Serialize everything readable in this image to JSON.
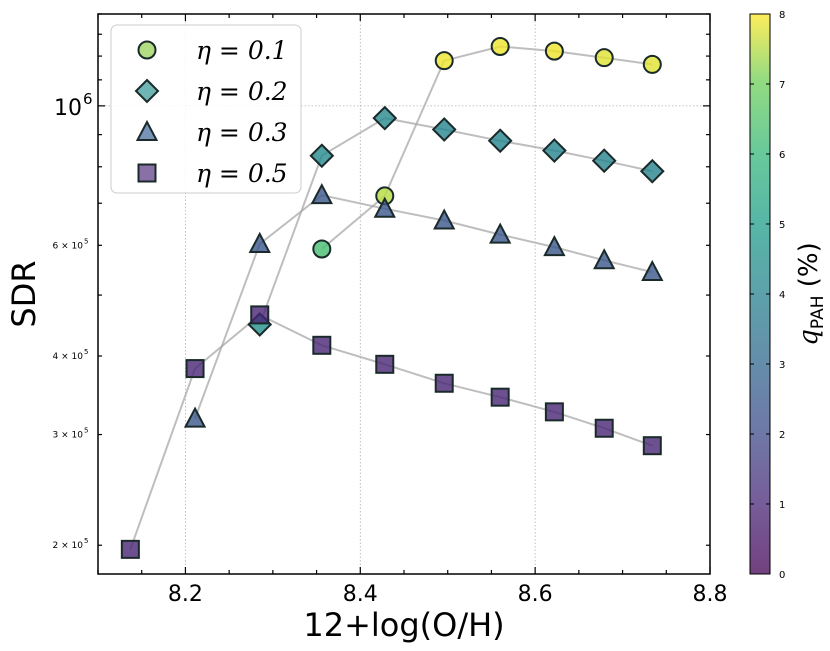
{
  "chart_data": {
    "type": "scatter",
    "xlabel": "12+log(O/H)",
    "ylabel": "SDR",
    "xlim": [
      8.1,
      8.8
    ],
    "ylim": [
      180000,
      1400000
    ],
    "yscale": "log",
    "x_ticks": [
      {
        "value": 8.2,
        "label": "8.2"
      },
      {
        "value": 8.4,
        "label": "8.4"
      },
      {
        "value": 8.6,
        "label": "8.6"
      },
      {
        "value": 8.8,
        "label": "8.8"
      }
    ],
    "y_ticks_major": [
      {
        "value": 1000000,
        "label": "10",
        "exp": "6"
      }
    ],
    "y_ticks_minor": [
      {
        "value": 200000,
        "label": "2 × 10",
        "exp": "5"
      },
      {
        "value": 300000,
        "label": "3 × 10",
        "exp": "5"
      },
      {
        "value": 400000,
        "label": "4 × 10",
        "exp": "5"
      },
      {
        "value": 600000,
        "label": "6 × 10",
        "exp": "5"
      }
    ],
    "grid": true,
    "legend_position": "top-left",
    "series": [
      {
        "name": "η = 0.1",
        "eta_label": "η = 0.1",
        "marker": "circle",
        "x": [
          8.356,
          8.428,
          8.496,
          8.56,
          8.622,
          8.679,
          8.734
        ],
        "y": [
          592000,
          719000,
          1180000,
          1243000,
          1222000,
          1193000,
          1164000
        ],
        "q": [
          6.3,
          7.5,
          7.9,
          7.9,
          7.9,
          7.8,
          7.8
        ]
      },
      {
        "name": "η = 0.2",
        "eta_label": "η = 0.2",
        "marker": "diamond",
        "x": [
          8.285,
          8.356,
          8.428,
          8.496,
          8.56,
          8.622,
          8.679,
          8.734
        ],
        "y": [
          449000,
          833000,
          956000,
          917000,
          880000,
          849000,
          818000,
          787000
        ],
        "q": [
          4.5,
          4.3,
          4.2,
          4.1,
          4.1,
          4.1,
          4.0,
          4.0
        ]
      },
      {
        "name": "η = 0.3",
        "eta_label": "η = 0.3",
        "marker": "triangle",
        "x": [
          8.211,
          8.285,
          8.356,
          8.428,
          8.496,
          8.56,
          8.622,
          8.679,
          8.734
        ],
        "y": [
          318000,
          603000,
          721000,
          686000,
          657000,
          624000,
          596000,
          568000,
          544000
        ],
        "q": [
          2.4,
          2.4,
          2.4,
          2.4,
          2.4,
          2.4,
          2.4,
          2.4,
          2.4
        ]
      },
      {
        "name": "η = 0.5",
        "eta_label": "η = 0.5",
        "marker": "square",
        "x": [
          8.137,
          8.211,
          8.285,
          8.356,
          8.428,
          8.496,
          8.56,
          8.622,
          8.679,
          8.734
        ],
        "y": [
          197000,
          382000,
          465000,
          416000,
          388000,
          362000,
          344000,
          326000,
          307000,
          288000
        ],
        "q": [
          0.9,
          0.9,
          0.9,
          0.9,
          0.9,
          0.9,
          0.9,
          0.9,
          0.9,
          0.9
        ]
      }
    ],
    "colorbar": {
      "label": "q",
      "label_sub": "PAH",
      "label_unit": " (%)",
      "min": 0,
      "max": 8,
      "ticks": [
        "0",
        "1",
        "2",
        "3",
        "4",
        "5",
        "6",
        "7",
        "8"
      ],
      "colormap": "viridis"
    }
  }
}
